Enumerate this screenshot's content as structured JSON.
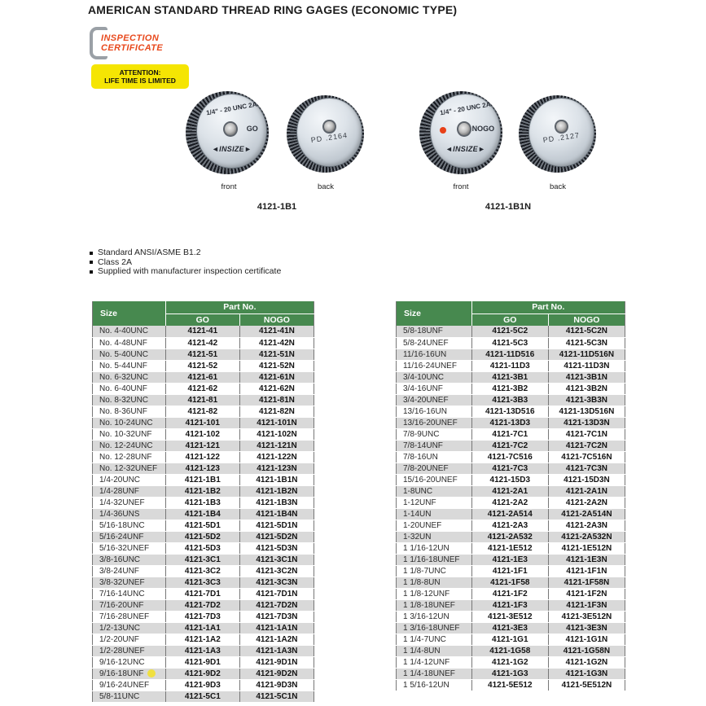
{
  "page": {
    "title": "AMERICAN STANDARD THREAD RING GAGES (ECONOMIC TYPE)"
  },
  "badges": {
    "inspection_line1": "INSPECTION",
    "inspection_line2": "CERTIFICATE",
    "attention_line1": "ATTENTION:",
    "attention_line2": "LIFE TIME IS LIMITED"
  },
  "products": [
    {
      "model": "4121-1B1",
      "front_label": "front",
      "back_label": "back",
      "marking_size": "1/4\" - 20 UNC 2A",
      "marking_type": "GO",
      "marking_brand": "◄INSIZE►",
      "back_marking": "PD  .2164",
      "has_red_dot": false
    },
    {
      "model": "4121-1B1N",
      "front_label": "front",
      "back_label": "back",
      "marking_size": "1/4\" - 20 UNC 2A",
      "marking_type": "NOGO",
      "marking_brand": "◄INSIZE►",
      "back_marking": "PD  .2127",
      "has_red_dot": true
    }
  ],
  "features": [
    "Standard ANSI/ASME B1.2",
    "Class 2A",
    "Supplied with manufacturer inspection certificate"
  ],
  "colors": {
    "header_green": "#47894f",
    "row_alt_gray": "#d9d9d9",
    "accent_orange": "#e8491d",
    "attention_yellow": "#f5e503",
    "highlight_dot_yellow": "#f0e040",
    "nogo_red_dot": "#e84018"
  },
  "tables": [
    {
      "headers": {
        "size": "Size",
        "part_no": "Part No.",
        "go": "GO",
        "nogo": "NOGO"
      },
      "rows": [
        {
          "size": "No. 4-40UNC",
          "go": "4121-41",
          "nogo": "4121-41N"
        },
        {
          "size": "No. 4-48UNF",
          "go": "4121-42",
          "nogo": "4121-42N"
        },
        {
          "size": "No. 5-40UNC",
          "go": "4121-51",
          "nogo": "4121-51N"
        },
        {
          "size": "No. 5-44UNF",
          "go": "4121-52",
          "nogo": "4121-52N"
        },
        {
          "size": "No. 6-32UNC",
          "go": "4121-61",
          "nogo": "4121-61N"
        },
        {
          "size": "No. 6-40UNF",
          "go": "4121-62",
          "nogo": "4121-62N"
        },
        {
          "size": "No. 8-32UNC",
          "go": "4121-81",
          "nogo": "4121-81N"
        },
        {
          "size": "No. 8-36UNF",
          "go": "4121-82",
          "nogo": "4121-82N"
        },
        {
          "size": "No. 10-24UNC",
          "go": "4121-101",
          "nogo": "4121-101N"
        },
        {
          "size": "No. 10-32UNF",
          "go": "4121-102",
          "nogo": "4121-102N"
        },
        {
          "size": "No. 12-24UNC",
          "go": "4121-121",
          "nogo": "4121-121N"
        },
        {
          "size": "No. 12-28UNF",
          "go": "4121-122",
          "nogo": "4121-122N"
        },
        {
          "size": "No. 12-32UNEF",
          "go": "4121-123",
          "nogo": "4121-123N"
        },
        {
          "size": "1/4-20UNC",
          "go": "4121-1B1",
          "nogo": "4121-1B1N"
        },
        {
          "size": "1/4-28UNF",
          "go": "4121-1B2",
          "nogo": "4121-1B2N"
        },
        {
          "size": "1/4-32UNEF",
          "go": "4121-1B3",
          "nogo": "4121-1B3N"
        },
        {
          "size": "1/4-36UNS",
          "go": "4121-1B4",
          "nogo": "4121-1B4N"
        },
        {
          "size": "5/16-18UNC",
          "go": "4121-5D1",
          "nogo": "4121-5D1N"
        },
        {
          "size": "5/16-24UNF",
          "go": "4121-5D2",
          "nogo": "4121-5D2N"
        },
        {
          "size": "5/16-32UNEF",
          "go": "4121-5D3",
          "nogo": "4121-5D3N"
        },
        {
          "size": "3/8-16UNC",
          "go": "4121-3C1",
          "nogo": "4121-3C1N"
        },
        {
          "size": "3/8-24UNF",
          "go": "4121-3C2",
          "nogo": "4121-3C2N"
        },
        {
          "size": "3/8-32UNEF",
          "go": "4121-3C3",
          "nogo": "4121-3C3N"
        },
        {
          "size": "7/16-14UNC",
          "go": "4121-7D1",
          "nogo": "4121-7D1N"
        },
        {
          "size": "7/16-20UNF",
          "go": "4121-7D2",
          "nogo": "4121-7D2N"
        },
        {
          "size": "7/16-28UNEF",
          "go": "4121-7D3",
          "nogo": "4121-7D3N"
        },
        {
          "size": "1/2-13UNC",
          "go": "4121-1A1",
          "nogo": "4121-1A1N"
        },
        {
          "size": "1/2-20UNF",
          "go": "4121-1A2",
          "nogo": "4121-1A2N"
        },
        {
          "size": "1/2-28UNEF",
          "go": "4121-1A3",
          "nogo": "4121-1A3N"
        },
        {
          "size": "9/16-12UNC",
          "go": "4121-9D1",
          "nogo": "4121-9D1N"
        },
        {
          "size": "9/16-18UNF",
          "go": "4121-9D2",
          "nogo": "4121-9D2N",
          "marker": true
        },
        {
          "size": "9/16-24UNEF",
          "go": "4121-9D3",
          "nogo": "4121-9D3N"
        },
        {
          "size": "5/8-11UNC",
          "go": "4121-5C1",
          "nogo": "4121-5C1N"
        }
      ]
    },
    {
      "headers": {
        "size": "Size",
        "part_no": "Part No.",
        "go": "GO",
        "nogo": "NOGO"
      },
      "rows": [
        {
          "size": "5/8-18UNF",
          "go": "4121-5C2",
          "nogo": "4121-5C2N"
        },
        {
          "size": "5/8-24UNEF",
          "go": "4121-5C3",
          "nogo": "4121-5C3N"
        },
        {
          "size": "11/16-16UN",
          "go": "4121-11D516",
          "nogo": "4121-11D516N"
        },
        {
          "size": "11/16-24UNEF",
          "go": "4121-11D3",
          "nogo": "4121-11D3N"
        },
        {
          "size": "3/4-10UNC",
          "go": "4121-3B1",
          "nogo": "4121-3B1N"
        },
        {
          "size": "3/4-16UNF",
          "go": "4121-3B2",
          "nogo": "4121-3B2N"
        },
        {
          "size": "3/4-20UNEF",
          "go": "4121-3B3",
          "nogo": "4121-3B3N"
        },
        {
          "size": "13/16-16UN",
          "go": "4121-13D516",
          "nogo": "4121-13D516N"
        },
        {
          "size": "13/16-20UNEF",
          "go": "4121-13D3",
          "nogo": "4121-13D3N"
        },
        {
          "size": "7/8-9UNC",
          "go": "4121-7C1",
          "nogo": "4121-7C1N"
        },
        {
          "size": "7/8-14UNF",
          "go": "4121-7C2",
          "nogo": "4121-7C2N"
        },
        {
          "size": "7/8-16UN",
          "go": "4121-7C516",
          "nogo": "4121-7C516N"
        },
        {
          "size": "7/8-20UNEF",
          "go": "4121-7C3",
          "nogo": "4121-7C3N"
        },
        {
          "size": "15/16-20UNEF",
          "go": "4121-15D3",
          "nogo": "4121-15D3N"
        },
        {
          "size": "1-8UNC",
          "go": "4121-2A1",
          "nogo": "4121-2A1N"
        },
        {
          "size": "1-12UNF",
          "go": "4121-2A2",
          "nogo": "4121-2A2N"
        },
        {
          "size": "1-14UN",
          "go": "4121-2A514",
          "nogo": "4121-2A514N"
        },
        {
          "size": "1-20UNEF",
          "go": "4121-2A3",
          "nogo": "4121-2A3N"
        },
        {
          "size": "1-32UN",
          "go": "4121-2A532",
          "nogo": "4121-2A532N"
        },
        {
          "size": "1 1/16-12UN",
          "go": "4121-1E512",
          "nogo": "4121-1E512N"
        },
        {
          "size": "1 1/16-18UNEF",
          "go": "4121-1E3",
          "nogo": "4121-1E3N"
        },
        {
          "size": "1 1/8-7UNC",
          "go": "4121-1F1",
          "nogo": "4121-1F1N"
        },
        {
          "size": "1 1/8-8UN",
          "go": "4121-1F58",
          "nogo": "4121-1F58N"
        },
        {
          "size": "1 1/8-12UNF",
          "go": "4121-1F2",
          "nogo": "4121-1F2N"
        },
        {
          "size": "1 1/8-18UNEF",
          "go": "4121-1F3",
          "nogo": "4121-1F3N"
        },
        {
          "size": "1 3/16-12UN",
          "go": "4121-3E512",
          "nogo": "4121-3E512N"
        },
        {
          "size": "1 3/16-18UNEF",
          "go": "4121-3E3",
          "nogo": "4121-3E3N"
        },
        {
          "size": "1 1/4-7UNC",
          "go": "4121-1G1",
          "nogo": "4121-1G1N"
        },
        {
          "size": "1 1/4-8UN",
          "go": "4121-1G58",
          "nogo": "4121-1G58N"
        },
        {
          "size": "1 1/4-12UNF",
          "go": "4121-1G2",
          "nogo": "4121-1G2N"
        },
        {
          "size": "1 1/4-18UNEF",
          "go": "4121-1G3",
          "nogo": "4121-1G3N"
        },
        {
          "size": "1 5/16-12UN",
          "go": "4121-5E512",
          "nogo": "4121-5E512N"
        }
      ]
    }
  ]
}
